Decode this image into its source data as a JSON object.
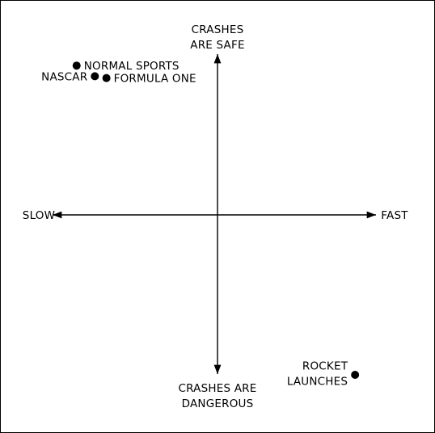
{
  "colors": {
    "ink": "#000000",
    "background": "#ffffff"
  },
  "chart_data": {
    "type": "scatter",
    "title": "",
    "axes": {
      "x": {
        "low_label": "SLOW",
        "high_label": "FAST",
        "range": [
          -10,
          10
        ]
      },
      "y": {
        "low_label": [
          "CRASHES ARE",
          "DANGEROUS"
        ],
        "high_label": [
          "CRASHES",
          "ARE SAFE"
        ],
        "range": [
          -10,
          10
        ]
      }
    },
    "grid": false,
    "legend": "none",
    "points": [
      {
        "label": "NORMAL SPORTS",
        "x": -8.5,
        "y": 8.4,
        "label_position": "right"
      },
      {
        "label": "NASCAR",
        "x": -7.4,
        "y": 7.8,
        "label_position": "left"
      },
      {
        "label": "FORMULA ONE",
        "x": -6.7,
        "y": 7.7,
        "label_position": "right"
      },
      {
        "label": [
          "ROCKET",
          "LAUNCHES"
        ],
        "x": 8.3,
        "y": -9.0,
        "label_position": "left"
      }
    ]
  }
}
